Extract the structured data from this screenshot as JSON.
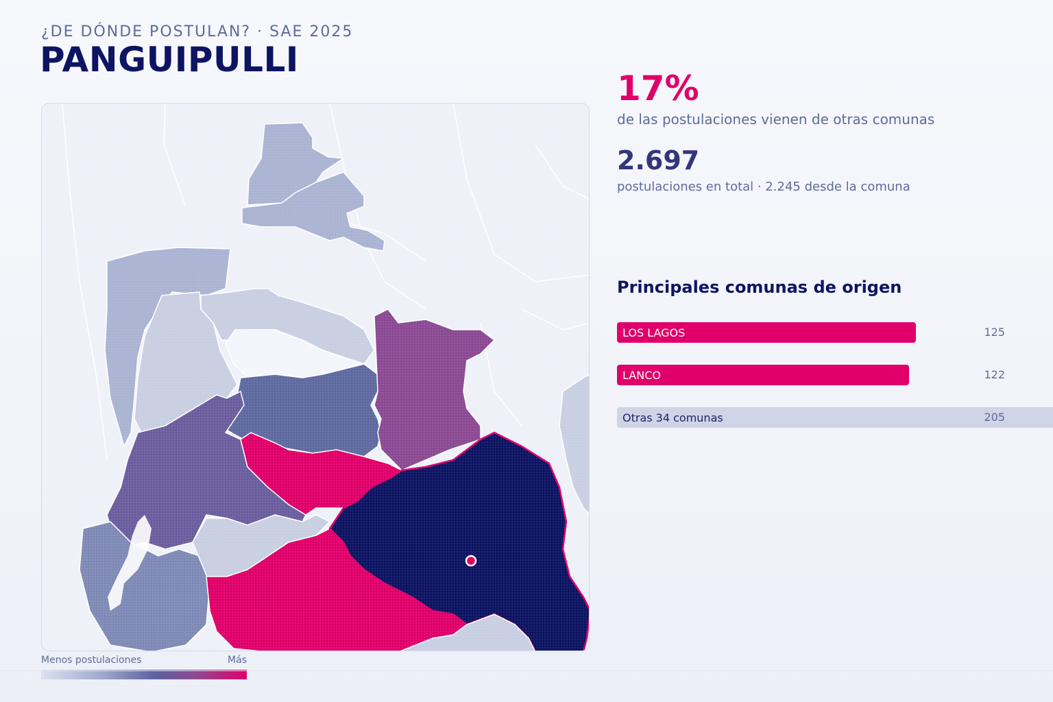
{
  "header": {
    "kicker": "¿DE DÓNDE POSTULAN? · SAE 2025",
    "title": "PANGUIPULLI"
  },
  "stats": {
    "percent": "17%",
    "percent_label": "de las postulaciones vienen de otras comunas",
    "total": "2.697",
    "total_label": "postulaciones en total · 2.245 desde la comuna"
  },
  "origins": {
    "title": "Principales comunas de origen",
    "items": [
      {
        "label": "LOS LAGOS",
        "value": "125"
      },
      {
        "label": "LANCO",
        "value": "122"
      },
      {
        "label": "Otras 34 comunas",
        "value": "205"
      }
    ]
  },
  "legend": {
    "low_label": "Menos postulaciones",
    "high_label": "Más"
  },
  "colors": {
    "accent": "#e0006a",
    "selected": "#0d1462",
    "level_high_mid": "#8b4a93",
    "level_mid": "#5f6aa0",
    "level_low": "#aab4d2",
    "level_lowest": "#c9cfe2"
  }
}
